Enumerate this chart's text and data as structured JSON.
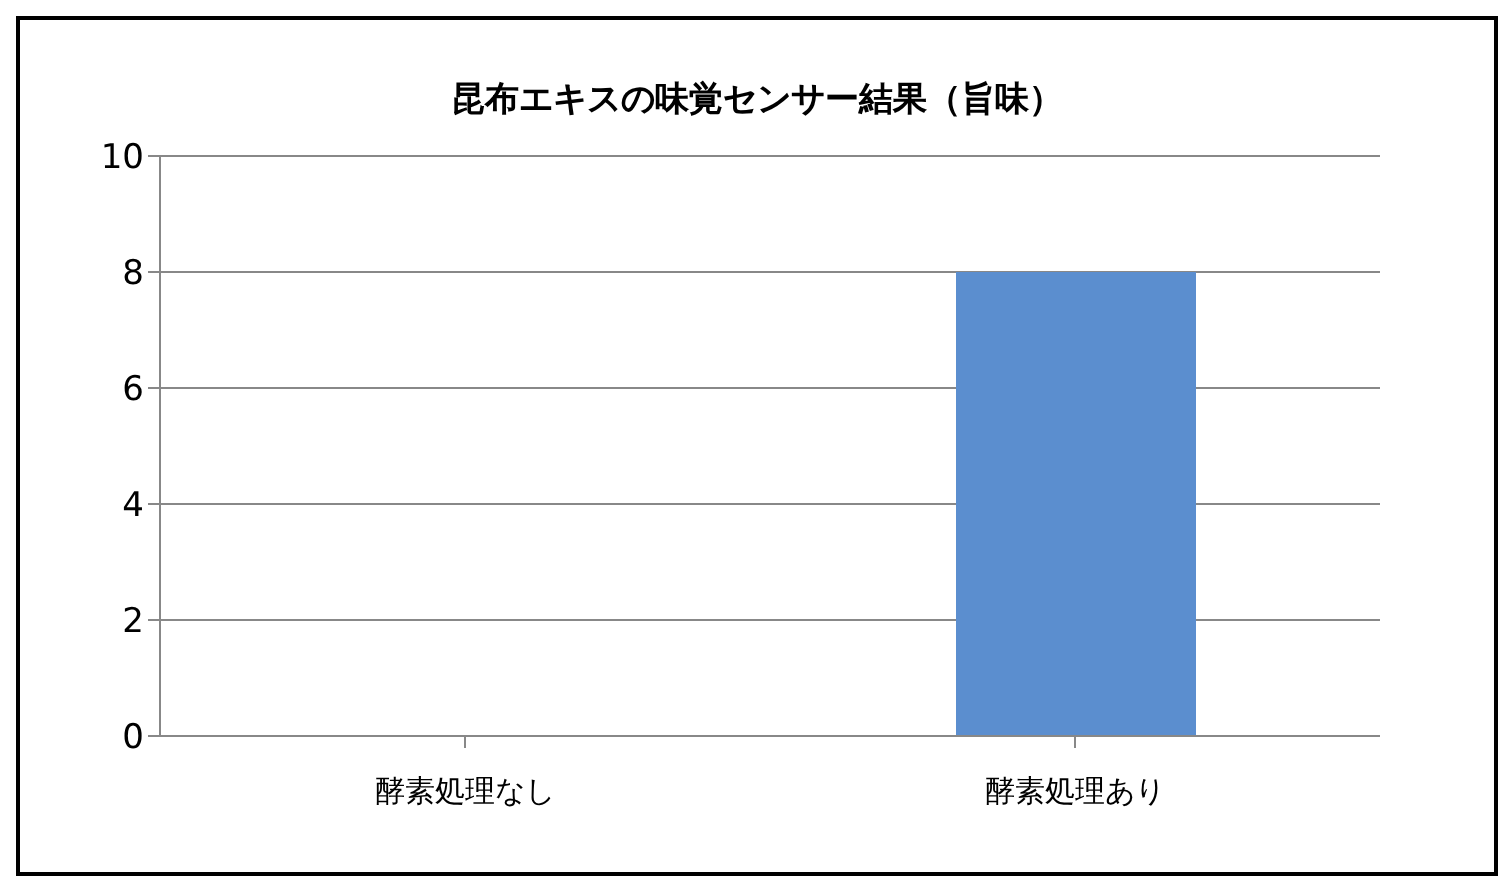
{
  "chart_data": {
    "type": "bar",
    "title": "昆布エキスの味覚センサー結果（旨味）",
    "categories": [
      "酵素処理なし",
      "酵素処理あり"
    ],
    "values": [
      0,
      8
    ],
    "color": "#5b8ecf",
    "ylim": [
      0,
      10
    ],
    "yticks": [
      0,
      2,
      4,
      6,
      8,
      10
    ],
    "grid": "y"
  }
}
